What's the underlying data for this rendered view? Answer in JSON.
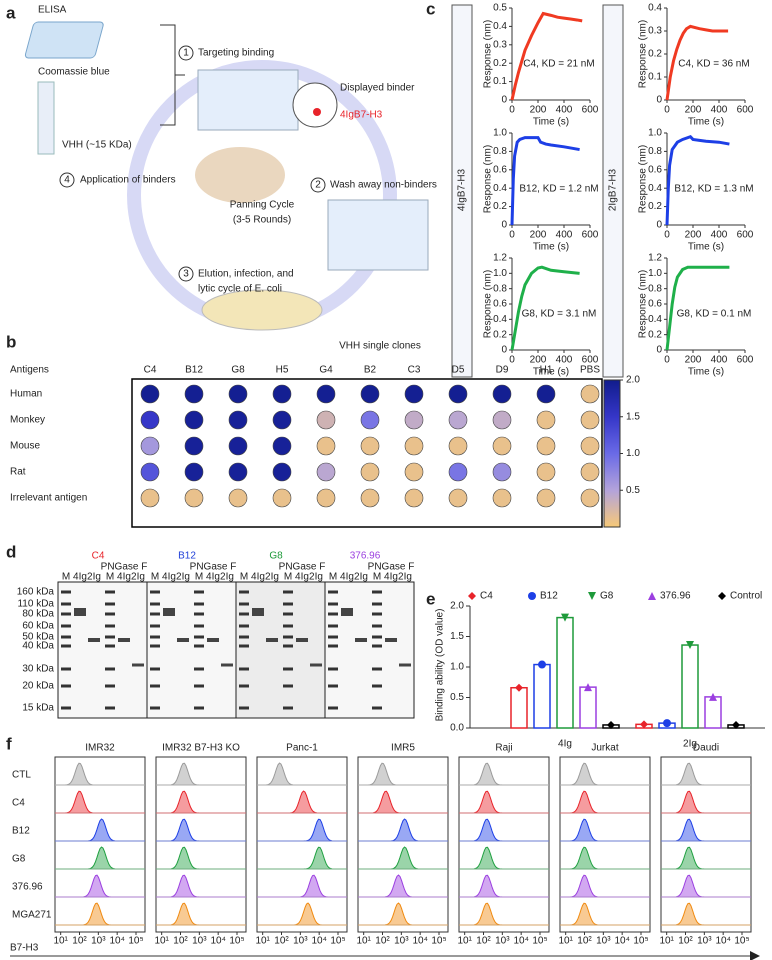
{
  "panel_labels": [
    "a",
    "b",
    "c",
    "d",
    "e",
    "f"
  ],
  "panel_a": {
    "elisa": "ELISA",
    "coomassie": "Coomassie blue",
    "vhh": "VHH (~15 KDa)",
    "steps": [
      {
        "number": "1",
        "label": [
          "Targeting binding"
        ]
      },
      {
        "number": "2",
        "label": [
          "Wash away non-binders"
        ]
      },
      {
        "number": "3",
        "label": [
          "Elution, infection, and",
          "lytic cycle of E. coli"
        ]
      },
      {
        "number": "4",
        "label": [
          "Application of binders"
        ]
      }
    ],
    "displayed_binder": "Displayed binder",
    "target": "4IgB7-H3",
    "cycle": [
      "Panning Cycle",
      "(3-5 Rounds)"
    ]
  },
  "panel_c": {
    "row_labels": [
      "4IgB7-H3",
      "2IgB7-H3"
    ]
  },
  "panel_d": {
    "clones": [
      {
        "name": "C4",
        "color": "#e8232a"
      },
      {
        "name": "B12",
        "color": "#1f3fd8"
      },
      {
        "name": "G8",
        "color": "#1e9a3a"
      },
      {
        "name": "376.96",
        "color": "#9b3fe0"
      }
    ],
    "lanes": [
      "M",
      "4Ig",
      "2Ig",
      "M",
      "4Ig",
      "2Ig"
    ],
    "enzyme": "PNGase F",
    "ladder": [
      "160 kDa",
      "110 kDa",
      "80 kDa",
      "60 kDa",
      "50 kDa",
      "40 kDa",
      "30 kDa",
      "20 kDa",
      "15 kDa"
    ]
  },
  "chart_data": [
    {
      "type": "line",
      "annotation": "C4, KD = 21 nM",
      "xlabel": "Time (s)",
      "ylabel": "Response (nm)",
      "color": "#f03a22",
      "x": [
        0,
        25,
        50,
        75,
        100,
        150,
        200,
        240,
        300,
        350,
        400,
        450,
        500,
        540
      ],
      "values": [
        0,
        0.08,
        0.15,
        0.21,
        0.27,
        0.35,
        0.42,
        0.47,
        0.46,
        0.45,
        0.445,
        0.44,
        0.435,
        0.43
      ],
      "xlim": [
        0,
        600
      ],
      "xticks": [
        0,
        200,
        400,
        600
      ],
      "ylim": [
        0,
        0.5
      ],
      "yticks": [
        0,
        0.1,
        0.2,
        0.3,
        0.4,
        0.5
      ]
    },
    {
      "type": "line",
      "annotation": "C4, KD = 36 nM",
      "xlabel": "Time (s)",
      "ylabel": "Response (nm)",
      "color": "#f03a22",
      "x": [
        0,
        25,
        50,
        75,
        100,
        125,
        150,
        180,
        250,
        300,
        350,
        400,
        470
      ],
      "values": [
        0,
        0.1,
        0.17,
        0.22,
        0.26,
        0.29,
        0.31,
        0.32,
        0.31,
        0.305,
        0.3,
        0.3,
        0.3
      ],
      "xlim": [
        0,
        600
      ],
      "xticks": [
        0,
        200,
        400,
        600
      ],
      "ylim": [
        0,
        0.4
      ],
      "yticks": [
        0,
        0.1,
        0.2,
        0.3,
        0.4
      ]
    },
    {
      "type": "line",
      "annotation": "B12, KD = 1.2 nM",
      "xlabel": "Time (s)",
      "ylabel": "Response (nm)",
      "color": "#1d3fe6",
      "x": [
        0,
        10,
        20,
        40,
        60,
        100,
        150,
        200,
        220,
        260,
        300,
        400,
        520
      ],
      "values": [
        0,
        0.5,
        0.75,
        0.9,
        0.93,
        0.95,
        0.95,
        0.95,
        0.9,
        0.88,
        0.87,
        0.85,
        0.82
      ],
      "xlim": [
        0,
        600
      ],
      "xticks": [
        0,
        200,
        400,
        600
      ],
      "ylim": [
        0,
        1
      ],
      "yticks": [
        0,
        0.2,
        0.4,
        0.6,
        0.8,
        {
          "value": 1,
          "label": "1.0"
        }
      ]
    },
    {
      "type": "line",
      "annotation": "B12, KD = 1.3 nM",
      "xlabel": "Time (s)",
      "ylabel": "Response (nm)",
      "color": "#1d3fe6",
      "x": [
        0,
        10,
        20,
        40,
        80,
        120,
        180,
        200,
        250,
        300,
        400,
        480
      ],
      "values": [
        0,
        0.4,
        0.65,
        0.82,
        0.9,
        0.93,
        0.96,
        0.93,
        0.92,
        0.91,
        0.9,
        0.88
      ],
      "xlim": [
        0,
        600
      ],
      "xticks": [
        0,
        200,
        400,
        600
      ],
      "ylim": [
        0,
        1
      ],
      "yticks": [
        0,
        0.2,
        0.4,
        0.6,
        0.8,
        {
          "value": 1,
          "label": "1.0"
        }
      ]
    },
    {
      "type": "line",
      "annotation": "G8, KD = 3.1 nM",
      "xlabel": "Time (s)",
      "ylabel": "Response (nm)",
      "color": "#1fb04a",
      "x": [
        0,
        25,
        50,
        75,
        100,
        150,
        200,
        230,
        300,
        400,
        520
      ],
      "values": [
        0,
        0.25,
        0.5,
        0.7,
        0.85,
        1,
        1.07,
        1.08,
        1.04,
        1.02,
        1
      ],
      "xlim": [
        0,
        600
      ],
      "xticks": [
        0,
        200,
        400,
        600
      ],
      "ylim": [
        0,
        1.2
      ],
      "yticks": [
        0,
        0.2,
        0.4,
        0.6,
        0.8,
        {
          "value": 1,
          "label": "1.0"
        },
        1.2
      ]
    },
    {
      "type": "line",
      "annotation": "G8, KD = 0.1 nM",
      "xlabel": "Time (s)",
      "ylabel": "Response (nm)",
      "color": "#1fb04a",
      "x": [
        0,
        20,
        40,
        60,
        80,
        120,
        160,
        200,
        300,
        400,
        480
      ],
      "values": [
        0,
        0.3,
        0.6,
        0.82,
        0.95,
        1.05,
        1.08,
        1.08,
        1.08,
        1.08,
        1.08
      ],
      "xlim": [
        0,
        600
      ],
      "xticks": [
        0,
        200,
        400,
        600
      ],
      "ylim": [
        0,
        1.2
      ],
      "yticks": [
        0,
        0.2,
        0.4,
        0.6,
        0.8,
        {
          "value": 1,
          "label": "1.0"
        },
        1.2
      ]
    },
    {
      "type": "heatmap",
      "title": "VHH single clones",
      "ylabel": "Antigens",
      "categories": [
        "C4",
        "B12",
        "G8",
        "H5",
        "G4",
        "B2",
        "C3",
        "D5",
        "D9",
        "H1",
        "PBS"
      ],
      "rows": [
        "Human",
        "Monkey",
        "Mouse",
        "Rat",
        "Irrelevant antigen"
      ],
      "values": [
        [
          1.95,
          1.95,
          1.95,
          1.95,
          1.95,
          1.95,
          1.95,
          1.95,
          1.95,
          1.95,
          0.1
        ],
        [
          1.5,
          1.9,
          1.9,
          1.9,
          0.3,
          0.9,
          0.4,
          0.45,
          0.4,
          0.1,
          0.1
        ],
        [
          0.6,
          1.9,
          1.9,
          1.9,
          0.1,
          0.1,
          0.1,
          0.1,
          0.1,
          0.1,
          0.1
        ],
        [
          1.2,
          1.9,
          1.9,
          1.9,
          0.45,
          0.1,
          0.1,
          0.9,
          0.7,
          0.1,
          0.1
        ],
        [
          0.1,
          0.1,
          0.1,
          0.1,
          0.1,
          0.1,
          0.1,
          0.1,
          0.1,
          0.1,
          0.1
        ]
      ],
      "zlim": [
        0,
        2
      ],
      "zticks": [
        {
          "value": 2,
          "label": "2.0"
        },
        1.5,
        {
          "value": 1,
          "label": "1.0"
        },
        0.5
      ],
      "colorscale": [
        "#f7c978",
        "#b3a3db",
        "#6a6ae6",
        "#3536c8",
        "#101c8c"
      ]
    },
    {
      "type": "bar",
      "ylabel": "Binding ability (OD value)",
      "categories": [
        "4Ig",
        "2Ig"
      ],
      "series": [
        {
          "name": "C4",
          "color": "#e8232a",
          "marker": "diamond",
          "values": [
            0.66,
            0.06
          ]
        },
        {
          "name": "B12",
          "color": "#1d3fe6",
          "marker": "circle",
          "values": [
            1.04,
            0.08
          ]
        },
        {
          "name": "G8",
          "color": "#1e9a3a",
          "marker": "triangle-down",
          "values": [
            1.81,
            1.36
          ]
        },
        {
          "name": "376.96",
          "color": "#9b3fe0",
          "marker": "triangle",
          "values": [
            0.67,
            0.51
          ]
        },
        {
          "name": "Control",
          "color": "#000000",
          "marker": "diamond",
          "values": [
            0.05,
            0.05
          ]
        }
      ],
      "ylim": [
        0,
        2
      ],
      "yticks": [
        {
          "value": 0,
          "label": "0.0"
        },
        0.5,
        {
          "value": 1,
          "label": "1.0"
        },
        1.5,
        {
          "value": 2,
          "label": "2.0"
        }
      ]
    },
    {
      "type": "ridgeline",
      "xlabel": "B7-H3",
      "categories": [
        "IMR32",
        "IMR32 B7-H3 KO",
        "Panc-1",
        "IMR5",
        "Raji",
        "Jurkat",
        "Daudi"
      ],
      "series": [
        {
          "name": "CTL",
          "color": "#9a9a9a",
          "values": [
            100,
            150,
            80,
            100,
            150,
            100,
            150
          ]
        },
        {
          "name": "C4",
          "color": "#e8232a",
          "values": [
            100,
            150,
            1500,
            150,
            150,
            100,
            150
          ]
        },
        {
          "name": "B12",
          "color": "#1d3fe6",
          "values": [
            1500,
            150,
            10000,
            1500,
            150,
            100,
            150
          ]
        },
        {
          "name": "G8",
          "color": "#1fa040",
          "values": [
            1500,
            150,
            10000,
            1500,
            150,
            100,
            150
          ]
        },
        {
          "name": "376.96",
          "color": "#9b3fe0",
          "values": [
            800,
            150,
            5000,
            700,
            150,
            100,
            150
          ]
        },
        {
          "name": "MGA271",
          "color": "#f08a10",
          "values": [
            800,
            150,
            2500,
            700,
            150,
            100,
            150
          ]
        }
      ],
      "xscale": "log",
      "xlim": [
        5,
        300000
      ],
      "xticks": [
        {
          "value": 10,
          "label": "10¹"
        },
        {
          "value": 100,
          "label": "10²"
        },
        {
          "value": 1000,
          "label": "10³"
        },
        {
          "value": 10000,
          "label": "10⁴"
        },
        {
          "value": 100000,
          "label": "10⁵"
        }
      ]
    }
  ]
}
